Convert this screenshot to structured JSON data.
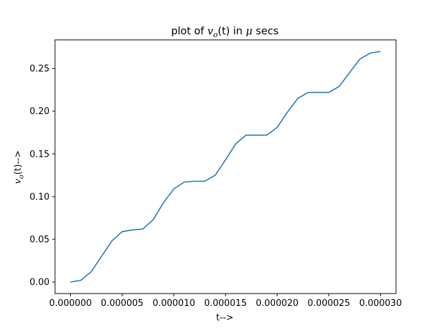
{
  "chart_data": {
    "type": "line",
    "title_prefix": "plot of ",
    "title_var": "v",
    "title_sub": "o",
    "title_suffix": "(t) in ",
    "title_unit_symbol": "μ",
    "title_unit": " secs",
    "xlabel": "t-->",
    "ylabel_var": "v",
    "ylabel_sub": "o",
    "ylabel_suffix": "(t)-->",
    "xlim": [
      -1.5e-06,
      3.15e-05
    ],
    "ylim": [
      -0.0135,
      0.2835
    ],
    "x_ticks": [
      0,
      5e-06,
      1e-05,
      1.5e-05,
      2e-05,
      2.5e-05,
      3e-05
    ],
    "x_tick_labels": [
      "0.000000",
      "0.000005",
      "0.000010",
      "0.000015",
      "0.000020",
      "0.000025",
      "0.000030"
    ],
    "y_ticks": [
      0,
      0.05,
      0.1,
      0.15,
      0.2,
      0.25
    ],
    "y_tick_labels": [
      "0.00",
      "0.05",
      "0.10",
      "0.15",
      "0.20",
      "0.25"
    ],
    "grid": false,
    "series": [
      {
        "color": "#1f77b4",
        "x": [
          0,
          1e-06,
          2e-06,
          3e-06,
          4e-06,
          5e-06,
          6e-06,
          7e-06,
          8e-06,
          9e-06,
          1e-05,
          1.1e-05,
          1.2e-05,
          1.3e-05,
          1.4e-05,
          1.5e-05,
          1.6e-05,
          1.7e-05,
          1.8e-05,
          1.9e-05,
          2e-05,
          2.1e-05,
          2.2e-05,
          2.3e-05,
          2.4e-05,
          2.5e-05,
          2.6e-05,
          2.7e-05,
          2.8e-05,
          2.9e-05,
          3e-05
        ],
        "y": [
          0.0,
          0.002,
          0.012,
          0.03,
          0.048,
          0.059,
          0.061,
          0.062,
          0.073,
          0.093,
          0.109,
          0.117,
          0.118,
          0.118,
          0.125,
          0.143,
          0.162,
          0.172,
          0.172,
          0.172,
          0.181,
          0.199,
          0.215,
          0.222,
          0.222,
          0.222,
          0.229,
          0.245,
          0.261,
          0.268,
          0.27
        ]
      }
    ]
  }
}
